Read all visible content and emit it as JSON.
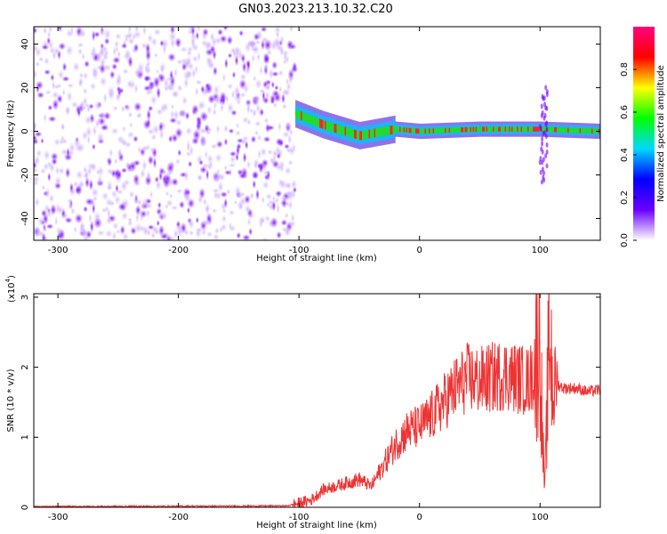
{
  "title": "GN03.2023.213.10.32.C20",
  "chart_data": [
    {
      "type": "heatmap",
      "xlabel": "Height of straight line (km)",
      "ylabel": "Frequency (Hz)",
      "xlim": [
        -320,
        150
      ],
      "ylim": [
        -50,
        48
      ],
      "x_ticks": [
        -300,
        -200,
        -100,
        0,
        100
      ],
      "y_ticks": [
        -40,
        -20,
        0,
        20,
        40
      ],
      "colorbar": {
        "label": "Normalized spectral amplitude",
        "range": [
          0,
          1
        ],
        "ticks": [
          "0.0",
          "0.2",
          "0.4",
          "0.6",
          "0.8"
        ],
        "colors": [
          "#ffffff",
          "#6a00ff",
          "#0000ff",
          "#00d8ff",
          "#00ff00",
          "#ffff00",
          "#ff0000",
          "#ff0080"
        ]
      },
      "description_regions": [
        {
          "x_range": [
            -320,
            -103
          ],
          "frequency_range": [
            -50,
            48
          ],
          "level": 0.15
        },
        {
          "x_range": [
            -103,
            150
          ],
          "center_frequency": [
            [
              -103,
              8
            ],
            [
              -80,
              3
            ],
            [
              -50,
              -2
            ],
            [
              -20,
              1
            ],
            [
              0,
              0
            ],
            [
              50,
              1
            ],
            [
              100,
              1
            ],
            [
              150,
              0
            ]
          ],
          "level": 0.7
        }
      ]
    },
    {
      "type": "line",
      "xlabel": "Height of straight line (km)",
      "ylabel": "SNR (10 * v/v)",
      "y_multiplier": "(x10",
      "y_multiplier_exp": "4",
      "xlim": [
        -320,
        150
      ],
      "ylim": [
        0,
        3.05
      ],
      "x_ticks": [
        -300,
        -200,
        -100,
        0,
        100
      ],
      "y_ticks": [
        0,
        1,
        2,
        3
      ],
      "color": "#ee3333",
      "x": [
        -320,
        -110,
        -90,
        -80,
        -60,
        -50,
        -40,
        -30,
        -20,
        -10,
        0,
        10,
        20,
        30,
        40,
        50,
        60,
        70,
        80,
        90,
        95,
        100,
        102,
        104,
        106,
        108,
        110,
        115,
        120,
        130,
        140,
        150
      ],
      "y": [
        0.01,
        0.02,
        0.1,
        0.25,
        0.35,
        0.4,
        0.3,
        0.6,
        0.9,
        1.1,
        1.15,
        1.3,
        1.5,
        1.7,
        1.85,
        1.8,
        1.85,
        1.9,
        1.85,
        1.8,
        1.9,
        2.5,
        1.0,
        0.2,
        1.5,
        2.6,
        1.9,
        1.75,
        1.7,
        1.7,
        1.65,
        1.68
      ]
    }
  ]
}
